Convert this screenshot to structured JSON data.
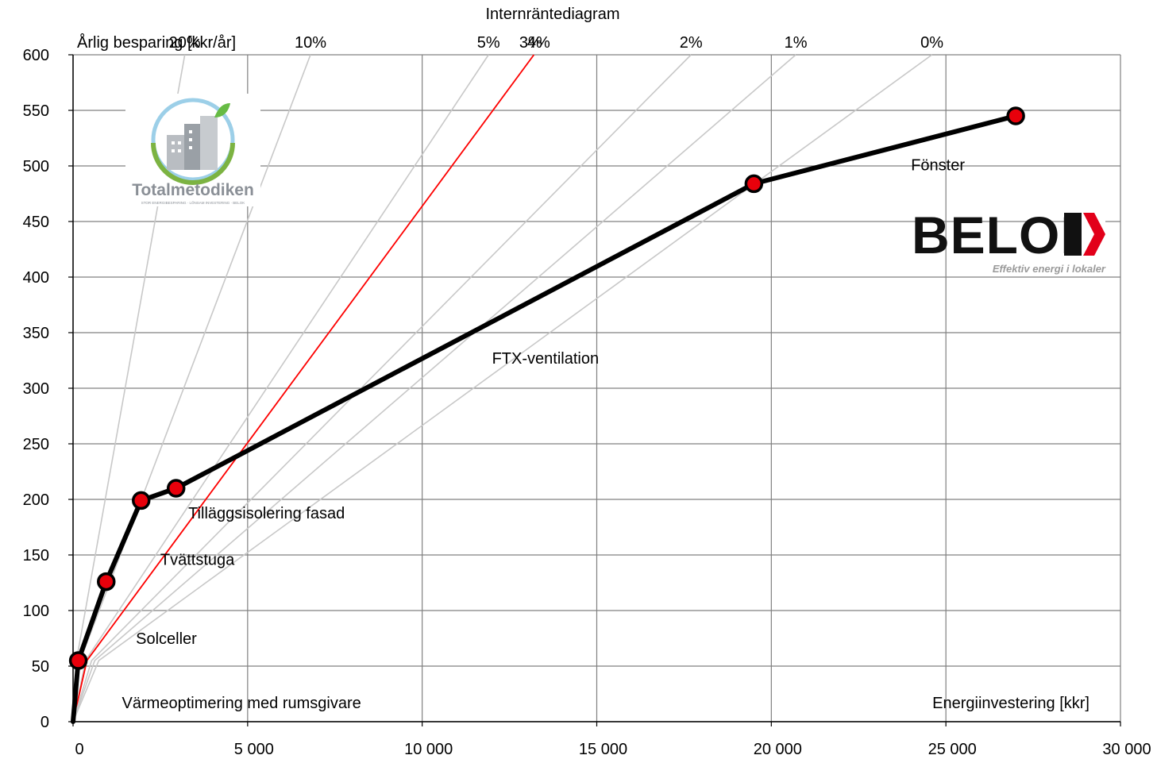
{
  "chart_data": {
    "type": "line",
    "title": "Internräntediagram",
    "xlabel": "Energiinvestering [kkr]",
    "ylabel": "Årlig besparing [kkr/år]",
    "xlim": [
      0,
      30000
    ],
    "ylim": [
      0,
      600
    ],
    "x_ticks": [
      0,
      5000,
      10000,
      15000,
      20000,
      25000,
      30000
    ],
    "x_tick_labels": [
      "0",
      "5 000",
      "10 000",
      "15 000",
      "20 000",
      "25 000",
      "30 000"
    ],
    "y_ticks": [
      0,
      50,
      100,
      150,
      200,
      250,
      300,
      350,
      400,
      450,
      500,
      550,
      600
    ],
    "y_tick_labels": [
      "0",
      "50",
      "100",
      "150",
      "200",
      "250",
      "300",
      "350",
      "400",
      "450",
      "500",
      "550",
      "600"
    ],
    "grid": true,
    "series": [
      {
        "x": [
          0,
          150,
          950,
          1950,
          2950,
          19500,
          27000
        ],
        "y": [
          0,
          55,
          126,
          199,
          210,
          484,
          545
        ],
        "color": "#000000",
        "marker_color": "#e8000b"
      }
    ],
    "annotations": [
      {
        "text": "Värmeoptimering med rumsgivare",
        "x": 1400,
        "y": 12
      },
      {
        "text": "Solceller",
        "x": 1800,
        "y": 70
      },
      {
        "text": "Tvättstuga",
        "x": 2500,
        "y": 141
      },
      {
        "text": "Tilläggsisolering fasad",
        "x": 3300,
        "y": 183
      },
      {
        "text": "FTX-ventilation",
        "x": 12000,
        "y": 322
      },
      {
        "text": "Fönster",
        "x": 24000,
        "y": 496
      }
    ],
    "irr_lines": [
      {
        "rate": "20%",
        "x_at_top": 3200,
        "highlight": false
      },
      {
        "rate": "10%",
        "x_at_top": 6800,
        "highlight": false
      },
      {
        "rate": "5%",
        "x_at_top": 11900,
        "highlight": false
      },
      {
        "rate": "4%",
        "x_at_top": 13200,
        "highlight": false
      },
      {
        "rate": "3%",
        "x_at_top": 13200,
        "highlight": true
      },
      {
        "rate": "2%",
        "x_at_top": 17700,
        "highlight": false
      },
      {
        "rate": "1%",
        "x_at_top": 20700,
        "highlight": false
      },
      {
        "rate": "0%",
        "x_at_top": 24600,
        "highlight": false
      }
    ],
    "colors": {
      "grid": "#808080",
      "irr": "#c8c8c8",
      "irr_highlight": "#ff0000",
      "curve": "#000000",
      "marker": "#e8000b"
    }
  },
  "logos": {
    "totalmetodiken": {
      "name": "Totalmetodiken",
      "tagline": "STOR ENERGIBESPARING · LÖNSAM INVESTERING · BELOK"
    },
    "belok": {
      "name": "BELOK",
      "tagline": "Effektiv energi i lokaler",
      "accent": "#e2001a"
    }
  }
}
